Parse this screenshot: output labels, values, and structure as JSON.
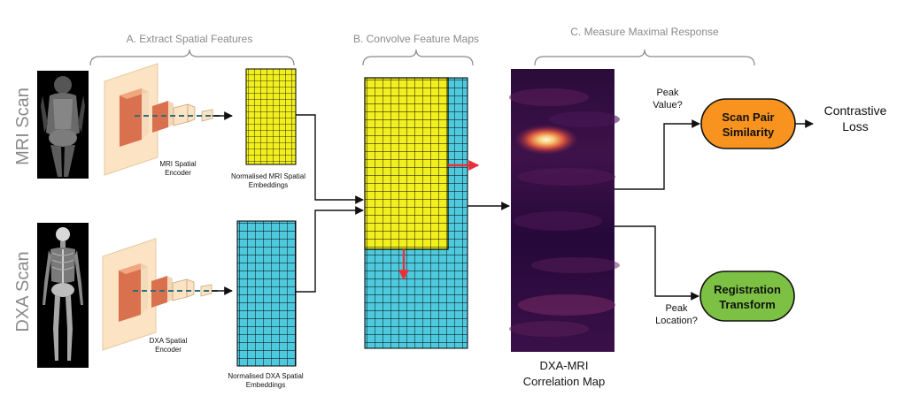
{
  "sections": {
    "a": "A. Extract Spatial Features",
    "b": "B. Convolve Feature Maps",
    "c": "C. Measure Maximal Response"
  },
  "scans": {
    "mri": "MRI Scan",
    "dxa": "DXA Scan"
  },
  "encoders": {
    "mri": [
      "MRI Spatial",
      "Encoder"
    ],
    "dxa": [
      "DXA Spatial",
      "Encoder"
    ]
  },
  "embeddings": {
    "mri": [
      "Normalised MRI Spatial",
      "Embeddings"
    ],
    "dxa": [
      "Normalised DXA Spatial",
      "Embeddings"
    ]
  },
  "correlation_map": [
    "DXA-MRI",
    "Correlation Map"
  ],
  "questions": {
    "peak_value": [
      "Peak",
      "Value?"
    ],
    "peak_location": [
      "Peak",
      "Location?"
    ]
  },
  "outputs": {
    "similarity": [
      "Scan Pair",
      "Similarity"
    ],
    "registration": [
      "Registration",
      "Transform"
    ],
    "loss": [
      "Contrastive",
      "Loss"
    ]
  },
  "colors": {
    "yellow": "#f2ef1f",
    "cyan": "#4ec9dd",
    "orange": "#f7931e",
    "green": "#7cc143",
    "arrow_red": "#e8303a",
    "encoder_bg": "#fbe3c3",
    "encoder_block": "#d9714f"
  }
}
